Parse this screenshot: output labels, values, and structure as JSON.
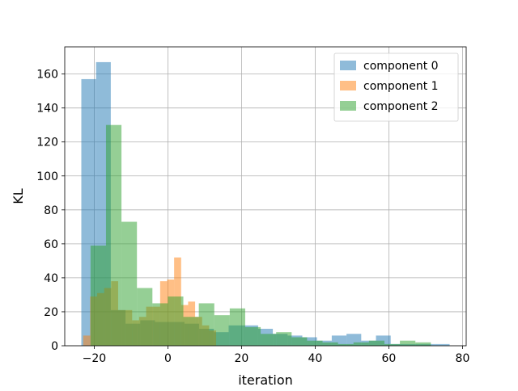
{
  "chart_data": {
    "type": "bar",
    "subtype": "overlapping-histogram",
    "title": "",
    "xlabel": "iteration",
    "ylabel": "KL",
    "xlim": [
      -28,
      81
    ],
    "ylim": [
      0,
      176
    ],
    "x_ticks": [
      -20,
      0,
      20,
      40,
      60,
      80
    ],
    "x_tick_labels": [
      "−20",
      "0",
      "20",
      "40",
      "60",
      "80"
    ],
    "y_ticks": [
      0,
      20,
      40,
      60,
      80,
      100,
      120,
      140,
      160
    ],
    "y_tick_labels": [
      "0",
      "20",
      "40",
      "60",
      "80",
      "100",
      "120",
      "140",
      "160"
    ],
    "grid": true,
    "legend_position": "top-right",
    "alpha": 0.5,
    "series": [
      {
        "name": "component 0",
        "color": "#1f77b4",
        "bin_edges": [
          -23.5,
          -19.5,
          -15.5,
          -11.5,
          -7.5,
          -3.5,
          0.5,
          4.5,
          8.5,
          12.5,
          16.5,
          20.5,
          24.5,
          28.5,
          32.5,
          36.5,
          40.5,
          44.5,
          48.5,
          52.5,
          56.5,
          60.5,
          64.5,
          68.5,
          72.5,
          76.5
        ],
        "counts": [
          157,
          167,
          21,
          13,
          15,
          14,
          14,
          13,
          10,
          8,
          12,
          12,
          10,
          7,
          6,
          5,
          3,
          6,
          7,
          3,
          6,
          1,
          1,
          1,
          1
        ]
      },
      {
        "name": "component 1",
        "color": "#ff7f0e",
        "bin_edges": [
          -23.0,
          -21.1,
          -19.2,
          -17.3,
          -15.4,
          -13.5,
          -11.6,
          -9.7,
          -7.8,
          -5.9,
          -4.0,
          -2.1,
          -0.2,
          1.7,
          3.6,
          5.5,
          7.4,
          9.3,
          11.2,
          13.1
        ],
        "counts": [
          6,
          29,
          31,
          34,
          38,
          21,
          21,
          15,
          17,
          23,
          23,
          38,
          39,
          52,
          24,
          26,
          17,
          12,
          9
        ]
      },
      {
        "name": "component 2",
        "color": "#2ca02c",
        "bin_edges": [
          -21.0,
          -16.8,
          -12.6,
          -8.4,
          -4.2,
          0.0,
          4.2,
          8.4,
          12.6,
          16.8,
          21.0,
          25.2,
          29.4,
          33.6,
          37.8,
          42.0,
          46.2,
          50.4,
          54.6,
          58.8,
          63.0,
          67.2,
          71.4
        ],
        "counts": [
          59,
          130,
          73,
          34,
          25,
          29,
          17,
          25,
          18,
          22,
          11,
          7,
          8,
          5,
          3,
          2,
          1,
          2,
          3,
          1,
          3,
          2
        ]
      }
    ]
  }
}
